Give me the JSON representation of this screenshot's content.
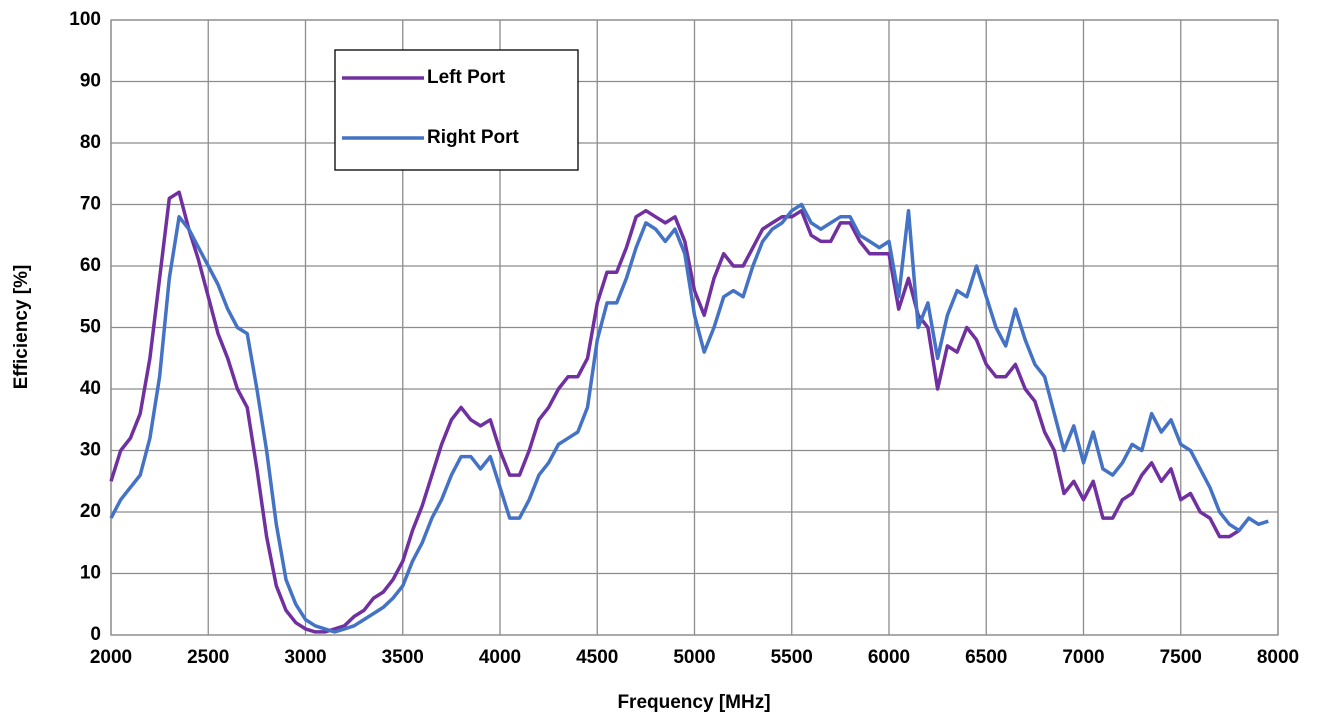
{
  "chart_data": {
    "type": "line",
    "xlabel": "Frequency [MHz]",
    "ylabel": "Efficiency [%]",
    "x": [
      2000,
      2050,
      2100,
      2150,
      2200,
      2250,
      2300,
      2350,
      2400,
      2450,
      2500,
      2550,
      2600,
      2650,
      2700,
      2750,
      2800,
      2850,
      2900,
      2950,
      3000,
      3050,
      3100,
      3150,
      3200,
      3250,
      3300,
      3350,
      3400,
      3450,
      3500,
      3550,
      3600,
      3650,
      3700,
      3750,
      3800,
      3850,
      3900,
      3950,
      4000,
      4050,
      4100,
      4150,
      4200,
      4250,
      4300,
      4350,
      4400,
      4450,
      4500,
      4550,
      4600,
      4650,
      4700,
      4750,
      4800,
      4850,
      4900,
      4950,
      5000,
      5050,
      5100,
      5150,
      5200,
      5250,
      5300,
      5350,
      5400,
      5450,
      5500,
      5550,
      5600,
      5650,
      5700,
      5750,
      5800,
      5850,
      5900,
      5950,
      6000,
      6050,
      6100,
      6150,
      6200,
      6250,
      6300,
      6350,
      6400,
      6450,
      6500,
      6550,
      6600,
      6650,
      6700,
      6750,
      6800,
      6850,
      6900,
      6950,
      7000,
      7050,
      7100,
      7150,
      7200,
      7250,
      7300,
      7350,
      7400,
      7450,
      7500,
      7550,
      7600,
      7650,
      7700,
      7750,
      7800,
      7850,
      7900,
      7950
    ],
    "series": [
      {
        "name": "Left Port",
        "color": "#7030a0",
        "values": [
          25,
          30,
          32,
          36,
          45,
          58,
          71,
          72,
          66,
          61,
          55,
          49,
          45,
          40,
          37,
          27,
          16,
          8,
          4,
          2,
          1,
          0.5,
          0.5,
          1,
          1.5,
          3,
          4,
          6,
          7,
          9,
          12,
          17,
          21,
          26,
          31,
          35,
          37,
          35,
          34,
          35,
          30,
          26,
          26,
          30,
          35,
          37,
          40,
          42,
          42,
          45,
          54,
          59,
          59,
          63,
          68,
          69,
          68,
          67,
          68,
          64,
          56,
          52,
          58,
          62,
          60,
          60,
          63,
          66,
          67,
          68,
          68,
          69,
          65,
          64,
          64,
          67,
          67,
          64,
          62,
          62,
          62,
          53,
          58,
          52,
          50,
          40,
          47,
          46,
          50,
          48,
          44,
          42,
          42,
          44,
          40,
          38,
          33,
          30,
          23,
          25,
          22,
          25,
          19,
          19,
          22,
          23,
          26,
          28,
          25,
          27,
          22,
          23,
          20,
          19,
          16,
          16,
          17,
          null,
          null,
          null
        ]
      },
      {
        "name": "Right Port",
        "color": "#4472c4",
        "values": [
          19,
          22,
          24,
          26,
          32,
          42,
          58,
          68,
          66,
          63,
          60,
          57,
          53,
          50,
          49,
          40,
          30,
          18,
          9,
          5,
          2.5,
          1.5,
          1,
          0.5,
          1,
          1.5,
          2.5,
          3.5,
          4.5,
          6,
          8,
          12,
          15,
          19,
          22,
          26,
          29,
          29,
          27,
          29,
          24,
          19,
          19,
          22,
          26,
          28,
          31,
          32,
          33,
          37,
          48,
          54,
          54,
          58,
          63,
          67,
          66,
          64,
          66,
          62,
          52,
          46,
          50,
          55,
          56,
          55,
          60,
          64,
          66,
          67,
          69,
          70,
          67,
          66,
          67,
          68,
          68,
          65,
          64,
          63,
          64,
          55,
          69,
          50,
          54,
          45,
          52,
          56,
          55,
          60,
          55,
          50,
          47,
          53,
          48,
          44,
          42,
          36,
          30,
          34,
          28,
          33,
          27,
          26,
          28,
          31,
          30,
          36,
          33,
          35,
          31,
          30,
          27,
          24,
          20,
          18,
          17,
          19,
          18,
          18.5
        ]
      }
    ],
    "xlim": [
      2000,
      8000
    ],
    "xticks": [
      2000,
      2500,
      3000,
      3500,
      4000,
      4500,
      5000,
      5500,
      6000,
      6500,
      7000,
      7500,
      8000
    ],
    "ylim": [
      0,
      100
    ],
    "yticks": [
      0,
      10,
      20,
      30,
      40,
      50,
      60,
      70,
      80,
      90,
      100
    ],
    "grid": true,
    "legend": "upper left"
  }
}
